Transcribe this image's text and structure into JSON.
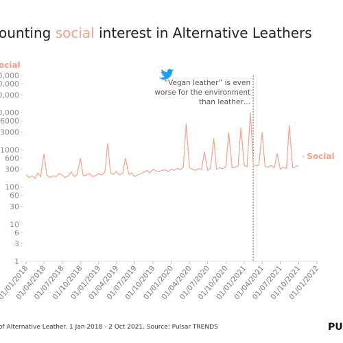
{
  "chart_data": {
    "type": "line",
    "title": {
      "before": "ounting ",
      "highlight": "social",
      "after": " interest in Alternative Leathers"
    },
    "ylabel": "ocial",
    "footer": "of Alternative Leather. 1 Jan 2018 - 2 Oct 2021. Source: Pulsar TRENDS",
    "logo": "PU",
    "log_y": true,
    "ylim": [
      1,
      100000
    ],
    "yticks": [
      1,
      3,
      6,
      10,
      30,
      60,
      100,
      300,
      600,
      1000,
      3000,
      6000,
      {
        "value": 10000,
        "label": "0,000"
      },
      {
        "value": 30000,
        "label": "0,000"
      },
      {
        "value": 60000,
        "label": "0,000"
      },
      {
        "value": 100000,
        "label": "0,000"
      }
    ],
    "xlim": [
      "01/01/2018",
      "01/01/2022"
    ],
    "xticks": [
      "01/01/2018",
      "01/04/2018",
      "01/07/2018",
      "01/10/2018",
      "01/01/2019",
      "01/04/2019",
      "01/07/2019",
      "01/10/2019",
      "01/01/2020",
      "01/04/2020",
      "01/07/2020",
      "01/10/2020",
      "01/01/2021",
      "01/04/2021",
      "01/07/2021",
      "01/10/2021",
      "01/01/2022"
    ],
    "series": [
      {
        "name": "Social",
        "color": "#f2a18c",
        "x": [
          "01/01/2018",
          "15/01/2018",
          "01/02/2018",
          "15/02/2018",
          "01/03/2018",
          "15/03/2018",
          "01/04/2018",
          "15/04/2018",
          "01/05/2018",
          "15/05/2018",
          "01/06/2018",
          "15/06/2018",
          "01/07/2018",
          "15/07/2018",
          "01/08/2018",
          "15/08/2018",
          "01/09/2018",
          "15/09/2018",
          "01/10/2018",
          "15/10/2018",
          "01/11/2018",
          "15/11/2018",
          "01/12/2018",
          "15/12/2018",
          "01/01/2019",
          "15/01/2019",
          "01/02/2019",
          "15/02/2019",
          "01/03/2019",
          "15/03/2019",
          "01/04/2019",
          "15/04/2019",
          "01/05/2019",
          "15/05/2019",
          "01/06/2019",
          "15/06/2019",
          "01/07/2019",
          "15/07/2019",
          "01/08/2019",
          "15/08/2019",
          "01/09/2019",
          "15/09/2019",
          "01/10/2019",
          "15/10/2019",
          "01/11/2019",
          "15/11/2019",
          "01/12/2019",
          "15/12/2019",
          "01/01/2020",
          "15/01/2020",
          "01/02/2020",
          "15/02/2020",
          "01/03/2020",
          "15/03/2020",
          "01/04/2020",
          "15/04/2020",
          "01/05/2020",
          "15/05/2020",
          "01/06/2020",
          "15/06/2020",
          "01/07/2020",
          "15/07/2020",
          "01/08/2020",
          "15/08/2020",
          "01/09/2020",
          "15/09/2020",
          "01/10/2020",
          "15/10/2020",
          "01/11/2020",
          "15/11/2020",
          "01/12/2020",
          "15/12/2020",
          "01/01/2021",
          "15/01/2021",
          "01/02/2021",
          "15/02/2021",
          "01/03/2021",
          "15/03/2021",
          "01/04/2021",
          "15/04/2021",
          "01/05/2021",
          "15/05/2021",
          "01/06/2021",
          "15/06/2021",
          "01/07/2021",
          "15/07/2021",
          "01/08/2021",
          "15/08/2021",
          "01/09/2021",
          "15/09/2021",
          "01/10/2021"
        ],
        "values": [
          220,
          180,
          200,
          170,
          240,
          190,
          800,
          210,
          180,
          200,
          190,
          230,
          210,
          180,
          200,
          250,
          190,
          220,
          600,
          200,
          210,
          230,
          190,
          200,
          230,
          210,
          250,
          1500,
          240,
          220,
          260,
          210,
          230,
          600,
          220,
          240,
          190,
          210,
          230,
          250,
          280,
          240,
          300,
          270,
          260,
          280,
          290,
          260,
          300,
          280,
          320,
          290,
          350,
          5000,
          330,
          300,
          280,
          310,
          300,
          900,
          280,
          320,
          2000,
          300,
          330,
          310,
          350,
          3000,
          330,
          340,
          360,
          4000,
          380,
          350,
          10000,
          400,
          370,
          390,
          3000,
          360,
          340,
          380,
          330,
          800,
          300,
          340,
          320,
          4500,
          330,
          350,
          380
        ]
      }
    ],
    "annotation": {
      "x": "15/02/2021",
      "lines": [
        "“Vegan leather” is even",
        "worse for the environment",
        "than leather…"
      ]
    }
  }
}
